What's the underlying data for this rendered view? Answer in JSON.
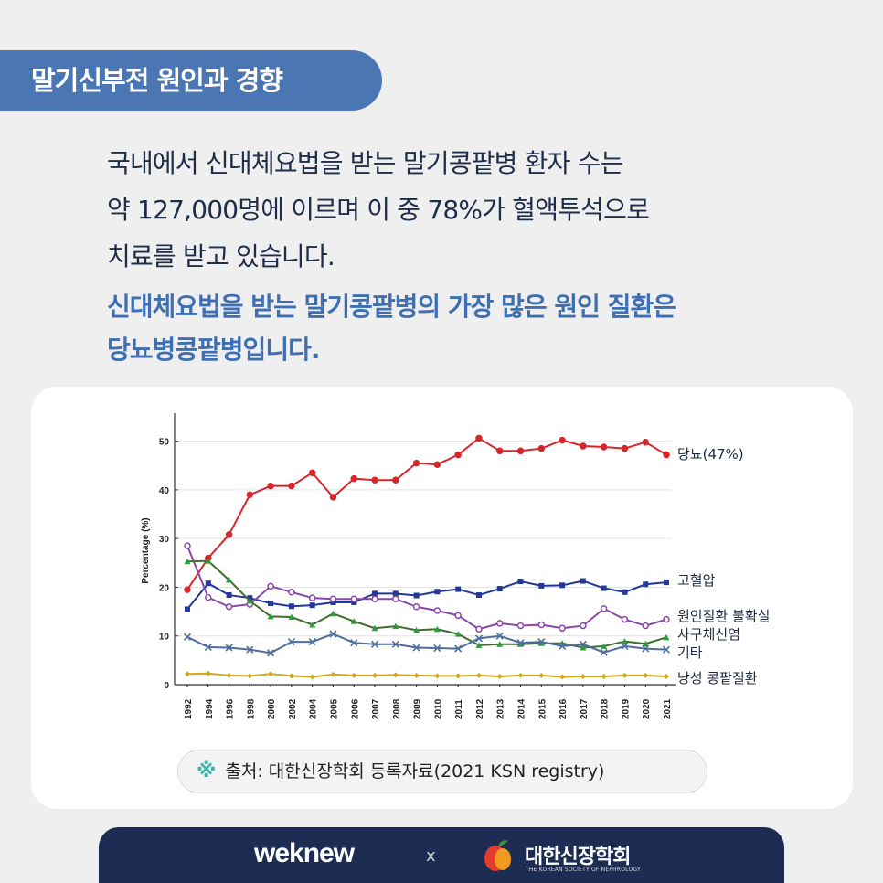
{
  "header": {
    "tag": "말기신부전 원인과 경향"
  },
  "intro": {
    "line1": "국내에서 신대체요법을 받는 말기콩팥병 환자 수는",
    "line2": "약 127,000명에 이르며 이 중 78%가 혈액투석으로",
    "line3": "치료를 받고 있습니다."
  },
  "highlight": {
    "line1": "신대체요법을 받는 말기콩팥병의 가장 많은 원인 질환은",
    "line2": "당뇨병콩팥병입니다."
  },
  "chart_data": {
    "type": "line",
    "ylabel": "Percentage (%)",
    "xlabel": "",
    "ylim": [
      0,
      55
    ],
    "yticks": [
      0,
      10,
      20,
      30,
      40,
      50
    ],
    "grid": true,
    "categories": [
      "1992",
      "1994",
      "1996",
      "1998",
      "2000",
      "2002",
      "2004",
      "2005",
      "2006",
      "2007",
      "2008",
      "2009",
      "2010",
      "2011",
      "2012",
      "2013",
      "2014",
      "2015",
      "2016",
      "2017",
      "2018",
      "2019",
      "2020",
      "2021"
    ],
    "series": [
      {
        "name": "당뇨(47%)",
        "color": "#d7262b",
        "marker": "circle",
        "values": [
          19.5,
          26,
          30.8,
          39,
          40.8,
          40.8,
          43.5,
          38.5,
          42.3,
          42,
          42,
          45.5,
          45.2,
          47.2,
          50.6,
          48,
          48,
          48.5,
          50.2,
          49,
          48.8,
          48.5,
          49.8,
          47.2
        ]
      },
      {
        "name": "고혈압",
        "color": "#23389a",
        "marker": "square",
        "values": [
          15.5,
          20.8,
          18.4,
          17.8,
          16.7,
          16.1,
          16.3,
          16.9,
          16.9,
          18.7,
          18.7,
          18.3,
          19.1,
          19.6,
          18.4,
          19.7,
          21.2,
          20.3,
          20.4,
          21.3,
          19.8,
          19,
          20.6,
          21
        ]
      },
      {
        "name": "원인질환 불확실",
        "color": "#8a47a8",
        "marker": "circle",
        "values": [
          28.5,
          17.9,
          16,
          16.5,
          20.2,
          19,
          17.8,
          17.6,
          17.6,
          17.6,
          17.6,
          16,
          15.2,
          14.2,
          11.4,
          12.6,
          12.1,
          12.3,
          11.6,
          12.1,
          15.6,
          13.4,
          12.1,
          13.4
        ]
      },
      {
        "name": "사구체신염",
        "color": "#3f6e2c",
        "marker": "triangle",
        "values": [
          25.3,
          25.4,
          21.5,
          17.2,
          14,
          13.9,
          12.3,
          14.6,
          13,
          11.6,
          12,
          11.2,
          11.4,
          10.4,
          8.1,
          8.3,
          8.3,
          8.5,
          8.5,
          7.6,
          7.9,
          8.9,
          8.4,
          9.7
        ]
      },
      {
        "name": "기타",
        "color": "#4f6e9d",
        "marker": "x",
        "values": [
          9.8,
          7.7,
          7.6,
          7.2,
          6.5,
          8.8,
          8.8,
          10.4,
          8.6,
          8.3,
          8.3,
          7.6,
          7.5,
          7.4,
          9.5,
          10,
          8.6,
          8.8,
          7.9,
          8.3,
          6.6,
          7.9,
          7.4,
          7.2
        ]
      },
      {
        "name": "낭성 콩팥질환",
        "color": "#d3a81b",
        "marker": "diamond",
        "values": [
          2.2,
          2.3,
          1.9,
          1.8,
          2.2,
          1.8,
          1.6,
          2.1,
          1.9,
          1.9,
          2,
          1.9,
          1.8,
          1.8,
          1.9,
          1.7,
          1.9,
          1.9,
          1.6,
          1.7,
          1.7,
          1.9,
          1.9,
          1.7
        ]
      }
    ]
  },
  "source": {
    "mark": "※",
    "text": "출처: 대한신장학회 등록자료(2021 KSN registry)"
  },
  "footer": {
    "brand1": "weknew",
    "separator": "x",
    "brand2": "대한신장학회",
    "brand2_sub": "THE KOREAN SOCIETY OF NEPHROLOGY",
    "logo_colors": [
      "#e33b2e",
      "#f29a1d",
      "#3f8f3a"
    ]
  }
}
